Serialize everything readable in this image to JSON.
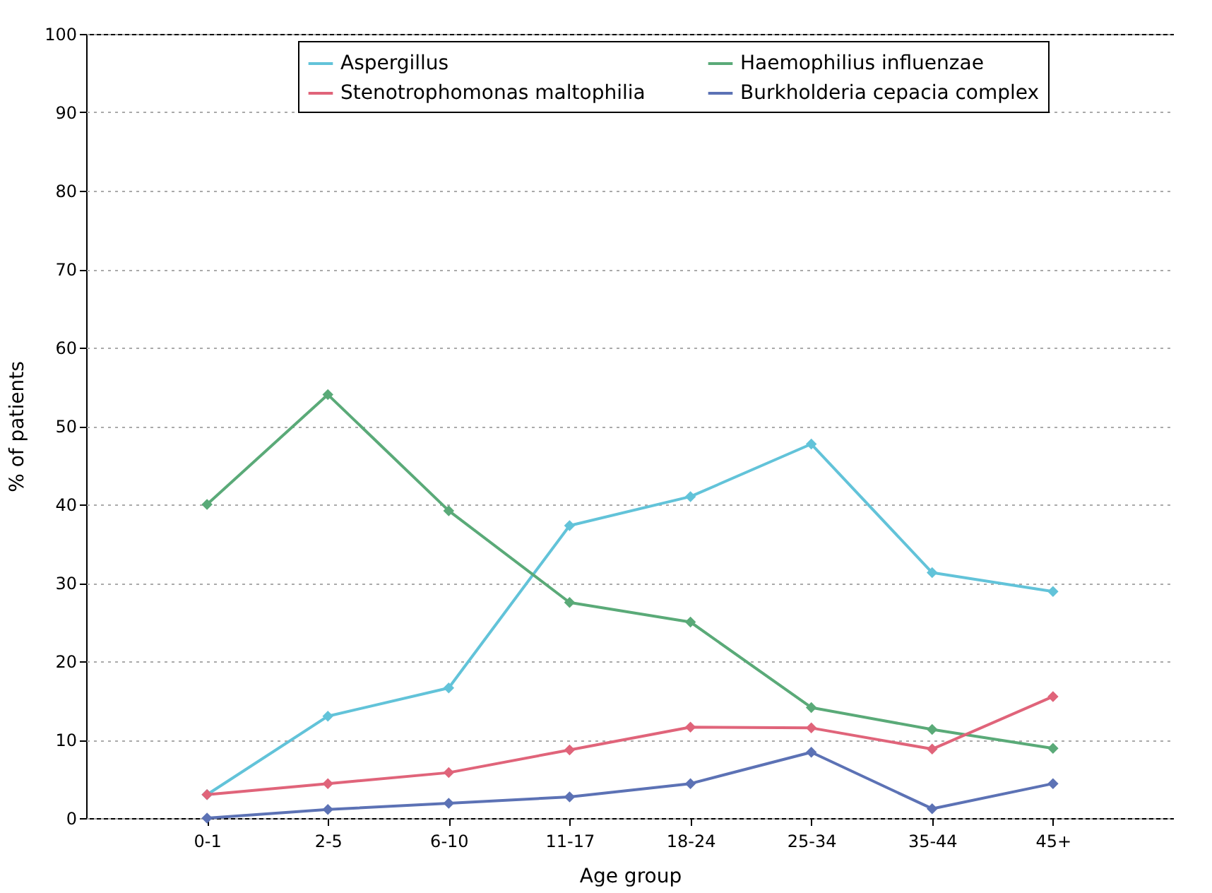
{
  "chart_data": {
    "type": "line",
    "xlabel": "Age group",
    "ylabel": "% of patients",
    "categories": [
      "0-1",
      "2-5",
      "6-10",
      "11-17",
      "18-24",
      "25-34",
      "35-44",
      "45+"
    ],
    "series": [
      {
        "name": "Aspergillus",
        "color": "#62c3d9",
        "values": [
          3,
          13,
          16.6,
          37.3,
          41,
          47.7,
          31.3,
          28.9
        ]
      },
      {
        "name": "Haemophilius influenzae",
        "color": "#5aaa78",
        "values": [
          40,
          54,
          39.2,
          27.5,
          25,
          14.1,
          11.3,
          8.9
        ]
      },
      {
        "name": "Stenotrophomonas maltophilia",
        "color": "#e0647a",
        "values": [
          3,
          4.4,
          5.8,
          8.7,
          11.6,
          11.5,
          8.8,
          15.5
        ]
      },
      {
        "name": "Burkholderia cepacia complex",
        "color": "#5c72b5",
        "values": [
          0,
          1.1,
          1.9,
          2.7,
          4.4,
          8.4,
          1.2,
          4.4
        ]
      }
    ],
    "ylim": [
      0,
      100
    ],
    "yticks": [
      0,
      10,
      20,
      30,
      40,
      50,
      60,
      70,
      80,
      90,
      100
    ],
    "grid": "y",
    "legend": "top",
    "marker": "diamond",
    "line_style": "solid"
  }
}
